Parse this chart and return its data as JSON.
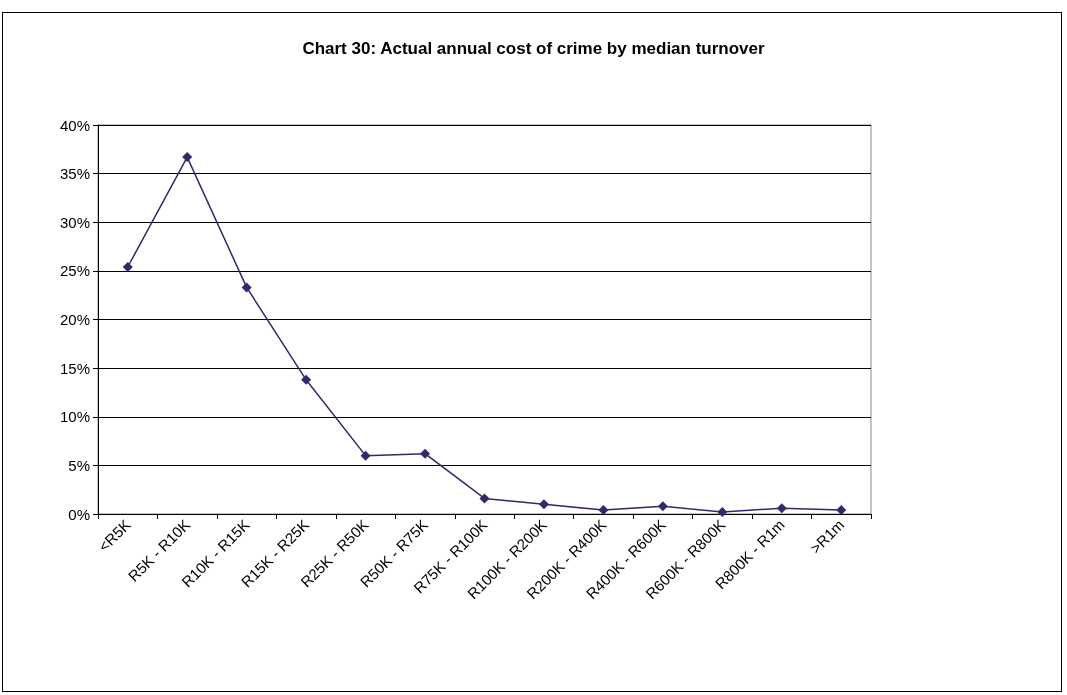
{
  "chart_data": {
    "type": "line",
    "title": "Chart 30: Actual annual cost of crime by median turnover",
    "categories": [
      "<R5K",
      "R5K - R10K",
      "R10K - R15K",
      "R15K - R25K",
      "R25K - R50K",
      "R50K - R75K",
      "R75K - R100K",
      "R100K - R200K",
      "R200K - R400K",
      "R400K - R600K",
      "R600K - R800K",
      "R800K - R1m",
      ">R1m"
    ],
    "values": [
      25.4,
      36.7,
      23.3,
      13.8,
      6.0,
      6.2,
      1.6,
      1.0,
      0.4,
      0.8,
      0.2,
      0.6,
      0.4
    ],
    "color": "#2e2b6b",
    "marker": "diamond",
    "line_style": "solid",
    "grid": "y",
    "ylim": [
      0,
      40
    ],
    "yticks": [
      {
        "value": 0,
        "label": "0%"
      },
      {
        "value": 5,
        "label": "5%"
      },
      {
        "value": 10,
        "label": "10%"
      },
      {
        "value": 15,
        "label": "15%"
      },
      {
        "value": 20,
        "label": "20%"
      },
      {
        "value": 25,
        "label": "25%"
      },
      {
        "value": 30,
        "label": "30%"
      },
      {
        "value": 35,
        "label": "35%"
      },
      {
        "value": 40,
        "label": "40%"
      }
    ]
  }
}
